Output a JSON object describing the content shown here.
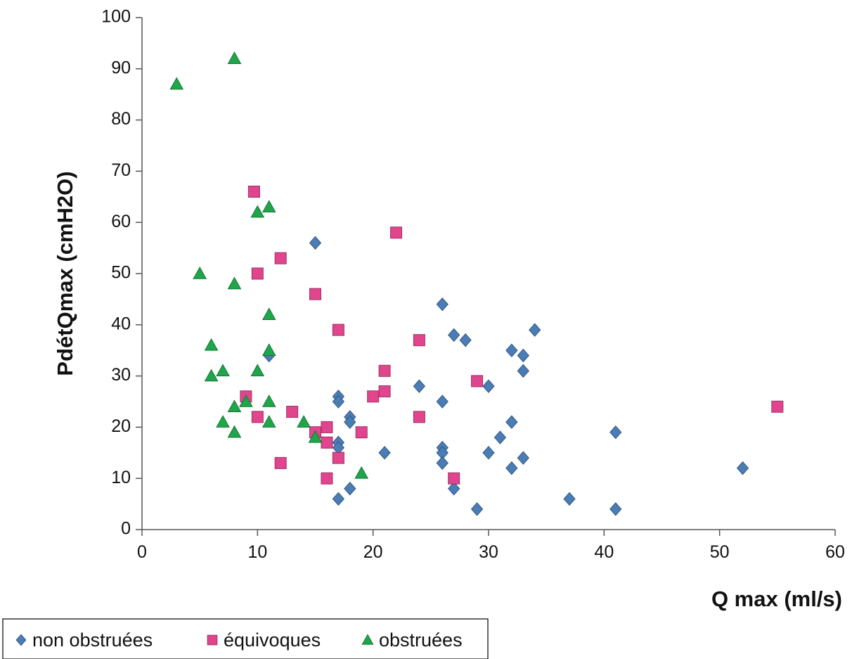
{
  "chart_data": {
    "type": "scatter",
    "title": "",
    "xlabel": "Q max (ml/s)",
    "ylabel": "PdétQmax (cmH2O)",
    "xlim": [
      0,
      60
    ],
    "ylim": [
      0,
      100
    ],
    "xticks": [
      "0",
      "10",
      "20",
      "30",
      "40",
      "50",
      "60"
    ],
    "yticks": [
      "0",
      "10",
      "20",
      "30",
      "40",
      "50",
      "60",
      "70",
      "80",
      "90",
      "100"
    ],
    "grid": false,
    "legend_position": "bottom-left",
    "series": [
      {
        "name": "non obstruées",
        "marker": "diamond",
        "color": "#4a7db5",
        "points": [
          [
            15,
            56
          ],
          [
            26,
            44
          ],
          [
            34,
            39
          ],
          [
            27,
            38
          ],
          [
            28,
            37
          ],
          [
            32,
            35
          ],
          [
            33,
            34
          ],
          [
            11,
            34
          ],
          [
            33,
            31
          ],
          [
            24,
            28
          ],
          [
            30,
            28
          ],
          [
            17,
            26
          ],
          [
            17,
            25
          ],
          [
            26,
            25
          ],
          [
            18,
            22
          ],
          [
            18,
            21
          ],
          [
            32,
            21
          ],
          [
            41,
            19
          ],
          [
            31,
            18
          ],
          [
            17,
            17
          ],
          [
            17,
            16
          ],
          [
            26,
            16
          ],
          [
            26,
            15
          ],
          [
            21,
            15
          ],
          [
            30,
            15
          ],
          [
            33,
            14
          ],
          [
            26,
            13
          ],
          [
            32,
            12
          ],
          [
            52,
            12
          ],
          [
            18,
            8
          ],
          [
            27,
            8
          ],
          [
            17,
            6
          ],
          [
            37,
            6
          ],
          [
            29,
            4
          ],
          [
            41,
            4
          ]
        ]
      },
      {
        "name": "équivoques",
        "marker": "square",
        "color": "#e0458e",
        "points": [
          [
            9.7,
            66
          ],
          [
            22,
            58
          ],
          [
            12,
            53
          ],
          [
            10,
            50
          ],
          [
            15,
            46
          ],
          [
            17,
            39
          ],
          [
            24,
            37
          ],
          [
            21,
            31
          ],
          [
            29,
            29
          ],
          [
            21,
            27
          ],
          [
            9,
            26
          ],
          [
            20,
            26
          ],
          [
            55,
            24
          ],
          [
            13,
            23
          ],
          [
            10,
            22
          ],
          [
            24,
            22
          ],
          [
            16,
            20
          ],
          [
            19,
            19
          ],
          [
            15,
            19
          ],
          [
            16,
            17
          ],
          [
            17,
            14
          ],
          [
            12,
            13
          ],
          [
            16,
            10
          ],
          [
            27,
            10
          ]
        ]
      },
      {
        "name": "obstruées",
        "marker": "triangle",
        "color": "#1fa64a",
        "points": [
          [
            8,
            92
          ],
          [
            3,
            87
          ],
          [
            11,
            63
          ],
          [
            10,
            62
          ],
          [
            5,
            50
          ],
          [
            8,
            48
          ],
          [
            11,
            42
          ],
          [
            6,
            36
          ],
          [
            11,
            35
          ],
          [
            7,
            31
          ],
          [
            10,
            31
          ],
          [
            6,
            30
          ],
          [
            9,
            25
          ],
          [
            11,
            25
          ],
          [
            8,
            24
          ],
          [
            7,
            21
          ],
          [
            11,
            21
          ],
          [
            14,
            21
          ],
          [
            8,
            19
          ],
          [
            15,
            18
          ],
          [
            19,
            11
          ]
        ]
      }
    ]
  }
}
